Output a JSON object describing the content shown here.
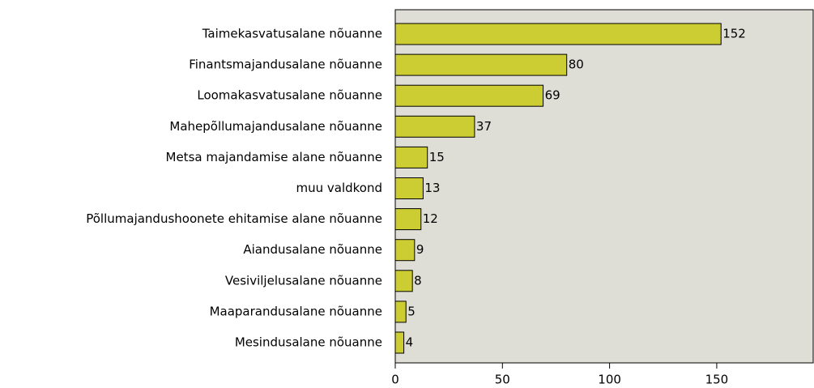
{
  "chart_data": {
    "type": "bar",
    "orientation": "horizontal",
    "categories": [
      "Taimekasvatusalane nõuanne",
      "Finantsmajandusalane nõuanne",
      "Loomakasvatusalane nõuanne",
      "Mahepõllumajandusalane nõuanne",
      "Metsa majandamise alane nõuanne",
      "muu valdkond",
      "Põllumajandushoonete ehitamise alane nõuanne",
      "Aiandusalane nõuanne",
      "Vesiviljelusalane nõuanne",
      "Maaparandusalane nõuanne",
      "Mesindusalane nõuanne"
    ],
    "values": [
      152,
      80,
      69,
      37,
      15,
      13,
      12,
      9,
      8,
      5,
      4
    ],
    "color": "#cccc33",
    "xlim": [
      0,
      195
    ],
    "xticks": [
      0,
      50,
      100,
      150
    ]
  }
}
